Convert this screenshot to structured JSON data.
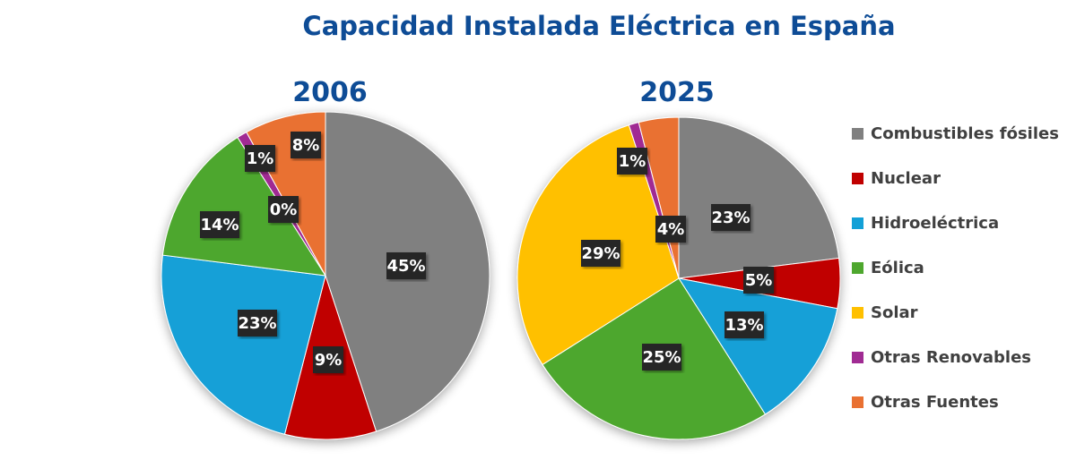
{
  "chart_data": {
    "type": "pie",
    "title": "Capacidad Instalada Eléctrica en España",
    "categories": [
      "Combustibles fósiles",
      "Nuclear",
      "Hidroeléctrica",
      "Eólica",
      "Solar",
      "Otras Renovables",
      "Otras Fuentes"
    ],
    "colors": [
      "#808080",
      "#C00000",
      "#12A0D7",
      "#4EA72E",
      "#FFC000",
      "#A02B93",
      "#E97132"
    ],
    "legend_position": "right",
    "charts": [
      {
        "title": "2006",
        "values": [
          45,
          9,
          23,
          14,
          0,
          1,
          8
        ],
        "labels": [
          "45%",
          "9%",
          "23%",
          "14%",
          "0%",
          "1%",
          "8%"
        ]
      },
      {
        "title": "2025",
        "values": [
          23,
          5,
          13,
          25,
          29,
          1,
          4
        ],
        "labels": [
          "23%",
          "5%",
          "13%",
          "25%",
          "29%",
          "1%",
          "4%"
        ]
      }
    ]
  }
}
